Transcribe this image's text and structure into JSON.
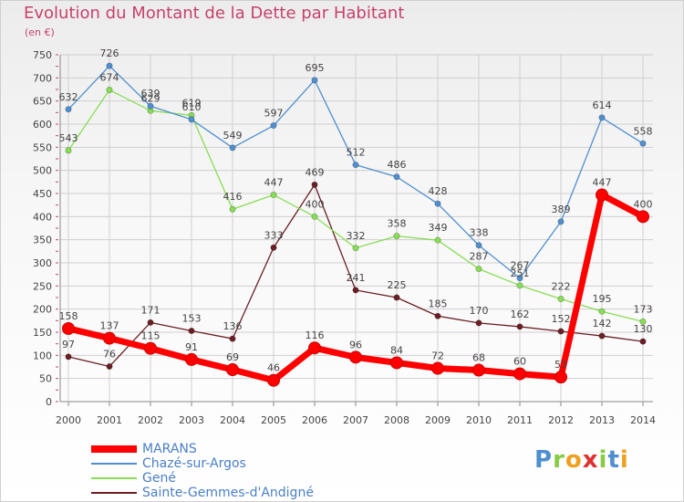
{
  "title": "Evolution du Montant de la Dette par Habitant",
  "subtitle": "(en €)",
  "logo": "Proxiti",
  "chart_data": {
    "type": "line",
    "x": [
      "2000",
      "2001",
      "2002",
      "2003",
      "2004",
      "2005",
      "2006",
      "2007",
      "2008",
      "2009",
      "2010",
      "2011",
      "2012",
      "2013",
      "2014"
    ],
    "ylim": [
      0,
      750
    ],
    "yticks": [
      0,
      50,
      100,
      150,
      200,
      250,
      300,
      350,
      400,
      450,
      500,
      550,
      600,
      650,
      700,
      750
    ],
    "grid": true,
    "legend_position": "bottom-left",
    "series": [
      {
        "name": "MARANS",
        "color": "#ff0000",
        "values": [
          158,
          137,
          115,
          91,
          69,
          46,
          116,
          96,
          84,
          72,
          68,
          60,
          53,
          447,
          400
        ]
      },
      {
        "name": "Chazé-sur-Argos",
        "color": "#4f8fd0",
        "values": [
          632,
          726,
          639,
          610,
          549,
          597,
          695,
          512,
          486,
          428,
          338,
          267,
          389,
          614,
          558
        ]
      },
      {
        "name": "Gené",
        "color": "#88dd55",
        "values": [
          543,
          674,
          629,
          619,
          416,
          447,
          400,
          332,
          358,
          349,
          287,
          251,
          222,
          195,
          173
        ]
      },
      {
        "name": "Sainte-Gemmes-d'Andigné",
        "color": "#6b1f24",
        "values": [
          97,
          76,
          171,
          153,
          136,
          333,
          469,
          241,
          225,
          185,
          170,
          162,
          152,
          142,
          130
        ]
      }
    ]
  }
}
